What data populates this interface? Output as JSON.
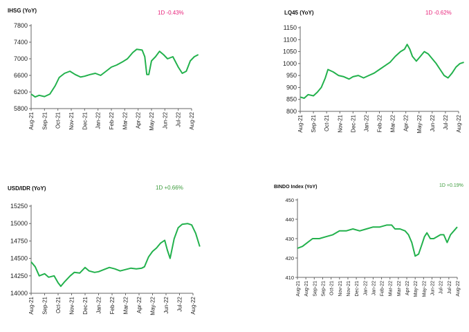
{
  "colors": {
    "line": "#22b14c",
    "negative": "#e8227a",
    "positive": "#3a9a3a",
    "axis": "#666666"
  },
  "chart_data": [
    {
      "type": "line",
      "title": "IHSG (YoY)",
      "change": "1D -0.43%",
      "change_sign": "negative",
      "xlabels": [
        "Aug-21",
        "Sep-21",
        "Oct-21",
        "Nov-21",
        "Dec-21",
        "Jan-22",
        "Feb-22",
        "Mar-22",
        "Apr-22",
        "May-22",
        "Jun-22",
        "Jul-22",
        "Aug-22"
      ],
      "yticks": [
        "5800",
        "6200",
        "6600",
        "7000",
        "7400",
        "7800"
      ],
      "ylim": [
        5800,
        7800
      ],
      "series": [
        {
          "points": [
            [
              0,
              6150
            ],
            [
              0.3,
              6080
            ],
            [
              0.6,
              6120
            ],
            [
              1.0,
              6090
            ],
            [
              1.4,
              6150
            ],
            [
              1.8,
              6350
            ],
            [
              2.1,
              6550
            ],
            [
              2.5,
              6650
            ],
            [
              2.9,
              6700
            ],
            [
              3.3,
              6620
            ],
            [
              3.7,
              6560
            ],
            [
              4.0,
              6580
            ],
            [
              4.4,
              6620
            ],
            [
              4.8,
              6650
            ],
            [
              5.2,
              6600
            ],
            [
              5.6,
              6700
            ],
            [
              6.0,
              6800
            ],
            [
              6.4,
              6850
            ],
            [
              6.8,
              6920
            ],
            [
              7.2,
              7000
            ],
            [
              7.6,
              7150
            ],
            [
              7.9,
              7230
            ],
            [
              8.3,
              7210
            ],
            [
              8.5,
              7050
            ],
            [
              8.65,
              6620
            ],
            [
              8.8,
              6620
            ],
            [
              9.0,
              6950
            ],
            [
              9.3,
              7050
            ],
            [
              9.6,
              7180
            ],
            [
              9.9,
              7100
            ],
            [
              10.2,
              7000
            ],
            [
              10.6,
              7050
            ],
            [
              11.0,
              6800
            ],
            [
              11.3,
              6650
            ],
            [
              11.6,
              6700
            ],
            [
              11.9,
              6950
            ],
            [
              12.2,
              7050
            ],
            [
              12.5,
              7100
            ]
          ]
        }
      ]
    },
    {
      "type": "line",
      "title": "LQ45 (YoY)",
      "change": "1D -0.62%",
      "change_sign": "negative",
      "xlabels": [
        "Aug-21",
        "Sep-21",
        "Oct-21",
        "Nov-21",
        "Dec-21",
        "Jan-22",
        "Feb-22",
        "Mar-22",
        "Apr-22",
        "May-22",
        "Jun-22",
        "Jul-22",
        "Aug-22"
      ],
      "yticks": [
        "800",
        "850",
        "900",
        "950",
        "1000",
        "1050",
        "1100",
        "1150"
      ],
      "ylim": [
        800,
        1150
      ],
      "series": [
        {
          "points": [
            [
              0,
              860
            ],
            [
              0.3,
              855
            ],
            [
              0.6,
              870
            ],
            [
              1.0,
              865
            ],
            [
              1.3,
              880
            ],
            [
              1.6,
              900
            ],
            [
              1.9,
              940
            ],
            [
              2.1,
              975
            ],
            [
              2.5,
              965
            ],
            [
              2.9,
              950
            ],
            [
              3.3,
              945
            ],
            [
              3.7,
              935
            ],
            [
              4.0,
              945
            ],
            [
              4.4,
              950
            ],
            [
              4.8,
              940
            ],
            [
              5.2,
              950
            ],
            [
              5.6,
              960
            ],
            [
              6.0,
              975
            ],
            [
              6.4,
              990
            ],
            [
              6.8,
              1005
            ],
            [
              7.2,
              1030
            ],
            [
              7.6,
              1050
            ],
            [
              7.9,
              1060
            ],
            [
              8.1,
              1080
            ],
            [
              8.3,
              1060
            ],
            [
              8.5,
              1030
            ],
            [
              8.8,
              1010
            ],
            [
              9.1,
              1030
            ],
            [
              9.4,
              1050
            ],
            [
              9.7,
              1040
            ],
            [
              10.0,
              1020
            ],
            [
              10.3,
              1000
            ],
            [
              10.6,
              975
            ],
            [
              10.9,
              950
            ],
            [
              11.2,
              940
            ],
            [
              11.5,
              960
            ],
            [
              11.8,
              985
            ],
            [
              12.1,
              1000
            ],
            [
              12.4,
              1005
            ]
          ]
        }
      ]
    },
    {
      "type": "line",
      "title": "USD/IDR (YoY)",
      "change": "1D +0.66%",
      "change_sign": "positive",
      "xlabels": [
        "Aug-21",
        "Sep-21",
        "Oct-21",
        "Nov-21",
        "Dec-21",
        "Jan-22",
        "Feb-22",
        "Mar-22",
        "Apr-22",
        "May-22",
        "Jun-22",
        "Jul-22",
        "Aug-22"
      ],
      "yticks": [
        "14000",
        "14250",
        "14500",
        "14750",
        "15000",
        "15250"
      ],
      "ylim": [
        14000,
        15250
      ],
      "series": [
        {
          "points": [
            [
              0,
              14450
            ],
            [
              0.3,
              14380
            ],
            [
              0.6,
              14250
            ],
            [
              1.0,
              14280
            ],
            [
              1.3,
              14230
            ],
            [
              1.7,
              14250
            ],
            [
              2.0,
              14150
            ],
            [
              2.2,
              14100
            ],
            [
              2.5,
              14170
            ],
            [
              2.9,
              14250
            ],
            [
              3.2,
              14300
            ],
            [
              3.6,
              14290
            ],
            [
              4.0,
              14370
            ],
            [
              4.3,
              14320
            ],
            [
              4.7,
              14300
            ],
            [
              5.0,
              14310
            ],
            [
              5.4,
              14340
            ],
            [
              5.8,
              14370
            ],
            [
              6.2,
              14350
            ],
            [
              6.6,
              14320
            ],
            [
              7.0,
              14340
            ],
            [
              7.4,
              14360
            ],
            [
              7.8,
              14350
            ],
            [
              8.2,
              14360
            ],
            [
              8.4,
              14380
            ],
            [
              8.7,
              14520
            ],
            [
              9.0,
              14600
            ],
            [
              9.3,
              14650
            ],
            [
              9.6,
              14720
            ],
            [
              9.9,
              14760
            ],
            [
              10.1,
              14620
            ],
            [
              10.3,
              14500
            ],
            [
              10.6,
              14780
            ],
            [
              10.9,
              14940
            ],
            [
              11.2,
              14990
            ],
            [
              11.6,
              15000
            ],
            [
              11.9,
              14980
            ],
            [
              12.2,
              14860
            ],
            [
              12.5,
              14670
            ]
          ]
        }
      ]
    },
    {
      "type": "line",
      "title": "BINDO Index (YoY)",
      "change": "1D +0.19%",
      "change_sign": "positive",
      "xlabels": [
        "Aug-21",
        "Aug-21",
        "Sep-21",
        "Sep-21",
        "Oct-21",
        "Nov-21",
        "Nov-21",
        "Dec-21",
        "Jan-22",
        "Jan-22",
        "Feb-22",
        "Mar-22",
        "Mar-22",
        "Apr-22",
        "May-22",
        "May-22",
        "Jun-22",
        "Jul-22",
        "Jul-22",
        "Aug-22"
      ],
      "yticks": [
        "410",
        "420",
        "430",
        "440",
        "450"
      ],
      "ylim": [
        410,
        450
      ],
      "series": [
        {
          "points": [
            [
              0,
              425
            ],
            [
              0.6,
              426
            ],
            [
              1.2,
              428
            ],
            [
              1.8,
              430
            ],
            [
              2.6,
              430
            ],
            [
              3.4,
              431
            ],
            [
              4.2,
              432
            ],
            [
              5.0,
              434
            ],
            [
              5.8,
              434
            ],
            [
              6.6,
              435
            ],
            [
              7.4,
              434
            ],
            [
              8.2,
              435
            ],
            [
              9.0,
              436
            ],
            [
              9.8,
              436
            ],
            [
              10.6,
              437
            ],
            [
              11.2,
              437
            ],
            [
              11.6,
              435
            ],
            [
              12.2,
              435
            ],
            [
              12.8,
              434
            ],
            [
              13.2,
              432
            ],
            [
              13.6,
              428
            ],
            [
              14.0,
              421
            ],
            [
              14.4,
              422
            ],
            [
              14.8,
              427
            ],
            [
              15.1,
              431
            ],
            [
              15.4,
              433
            ],
            [
              15.8,
              430
            ],
            [
              16.2,
              430
            ],
            [
              16.6,
              431
            ],
            [
              17.0,
              432
            ],
            [
              17.4,
              432
            ],
            [
              17.8,
              428
            ],
            [
              18.2,
              432
            ],
            [
              18.6,
              434
            ],
            [
              19.0,
              436
            ]
          ]
        }
      ]
    }
  ]
}
